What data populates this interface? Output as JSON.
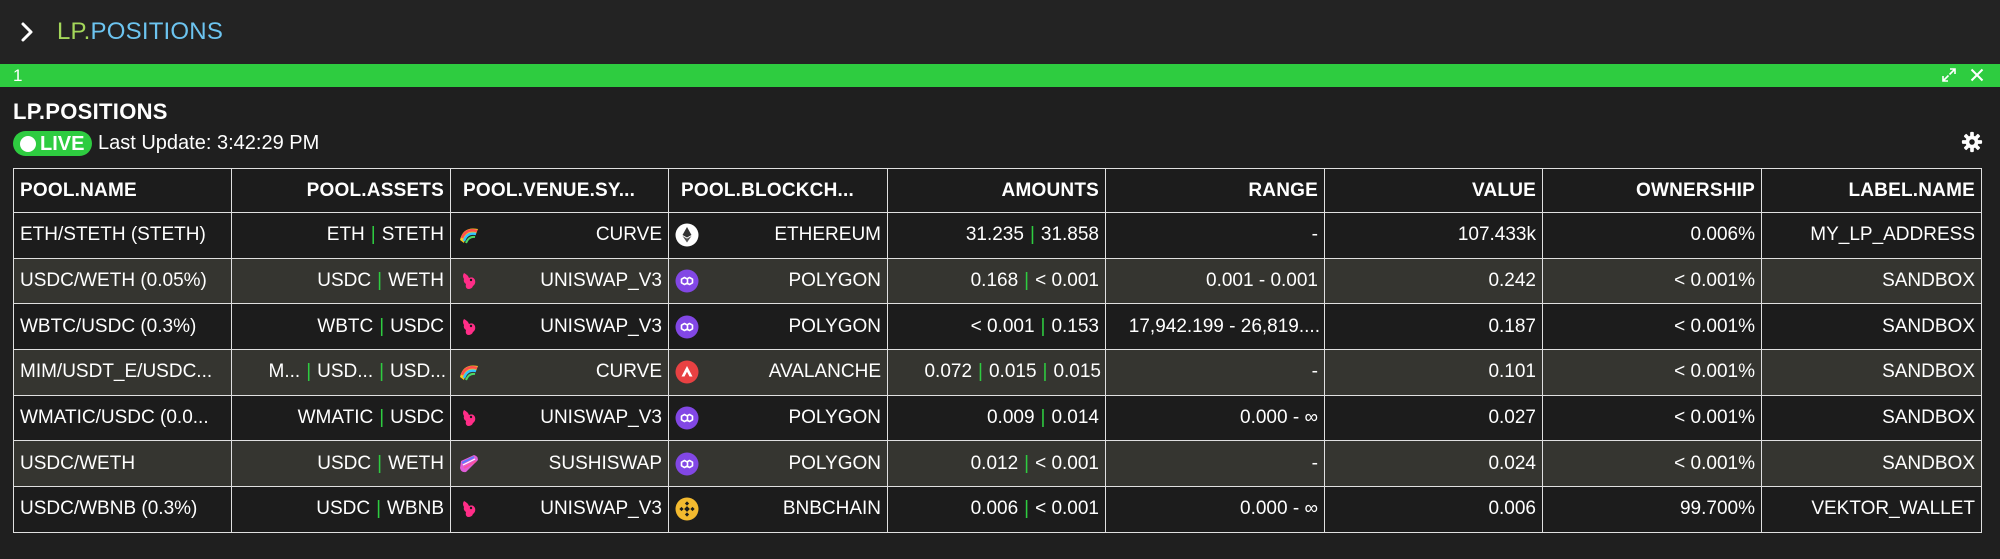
{
  "header": {
    "title_lp": "LP",
    "title_dot": ".",
    "title_pos": "POSITIONS"
  },
  "tabbar": {
    "tab_number": "1"
  },
  "panel": {
    "title": "LP.POSITIONS",
    "live_label": "LIVE",
    "last_update": "Last Update: 3:42:29 PM"
  },
  "table": {
    "headers": [
      "POOL.NAME",
      "POOL.ASSETS",
      "POOL.VENUE.SY...",
      "POOL.BLOCKCH...",
      "AMOUNTS",
      "RANGE",
      "VALUE",
      "OWNERSHIP",
      "LABEL.NAME"
    ],
    "rows": [
      {
        "name": "ETH/STETH (STETH)",
        "assets": [
          "ETH",
          "STETH"
        ],
        "venue": "CURVE",
        "venue_icon": "curve-icon",
        "chain": "ETHEREUM",
        "chain_icon": "ethereum-icon",
        "amounts": [
          "31.235",
          "31.858"
        ],
        "range": "-",
        "value": "107.433k",
        "ownership": "0.006%",
        "label": "MY_LP_ADDRESS"
      },
      {
        "name": "USDC/WETH (0.05%)",
        "assets": [
          "USDC",
          "WETH"
        ],
        "venue": "UNISWAP_V3",
        "venue_icon": "uniswap-icon",
        "chain": "POLYGON",
        "chain_icon": "polygon-icon",
        "amounts": [
          "0.168",
          "< 0.001"
        ],
        "range": "0.001 - 0.001",
        "value": "0.242",
        "ownership": "< 0.001%",
        "label": "SANDBOX"
      },
      {
        "name": "WBTC/USDC (0.3%)",
        "assets": [
          "WBTC",
          "USDC"
        ],
        "venue": "UNISWAP_V3",
        "venue_icon": "uniswap-icon",
        "chain": "POLYGON",
        "chain_icon": "polygon-icon",
        "amounts": [
          "< 0.001",
          "0.153"
        ],
        "range": "17,942.199 - 26,819....",
        "value": "0.187",
        "ownership": "< 0.001%",
        "label": "SANDBOX"
      },
      {
        "name": "MIM/USDT_E/USDC...",
        "assets": [
          "M...",
          "USD...",
          "USD..."
        ],
        "venue": "CURVE",
        "venue_icon": "curve-icon",
        "chain": "AVALANCHE",
        "chain_icon": "avalanche-icon",
        "amounts": [
          "0.072",
          "0.015",
          "0.015"
        ],
        "range": "-",
        "value": "0.101",
        "ownership": "< 0.001%",
        "label": "SANDBOX"
      },
      {
        "name": "WMATIC/USDC (0.0...",
        "assets": [
          "WMATIC",
          "USDC"
        ],
        "venue": "UNISWAP_V3",
        "venue_icon": "uniswap-icon",
        "chain": "POLYGON",
        "chain_icon": "polygon-icon",
        "amounts": [
          "0.009",
          "0.014"
        ],
        "range": "0.000 - ∞",
        "value": "0.027",
        "ownership": "< 0.001%",
        "label": "SANDBOX"
      },
      {
        "name": "USDC/WETH",
        "assets": [
          "USDC",
          "WETH"
        ],
        "venue": "SUSHISWAP",
        "venue_icon": "sushiswap-icon",
        "chain": "POLYGON",
        "chain_icon": "polygon-icon",
        "amounts": [
          "0.012",
          "< 0.001"
        ],
        "range": "-",
        "value": "0.024",
        "ownership": "< 0.001%",
        "label": "SANDBOX"
      },
      {
        "name": "USDC/WBNB (0.3%)",
        "assets": [
          "USDC",
          "WBNB"
        ],
        "venue": "UNISWAP_V3",
        "venue_icon": "uniswap-icon",
        "chain": "BNBCHAIN",
        "chain_icon": "bnbchain-icon",
        "amounts": [
          "0.006",
          "< 0.001"
        ],
        "range": "0.000 - ∞",
        "value": "0.006",
        "ownership": "99.700%",
        "label": "VEKTOR_WALLET"
      }
    ]
  },
  "colors": {
    "accent_green": "#2ecc40",
    "title_lp_green": "#a3d65a",
    "title_blue": "#6cc4f0",
    "row_alt": "#353530",
    "row_base": "#1c1c1c"
  }
}
